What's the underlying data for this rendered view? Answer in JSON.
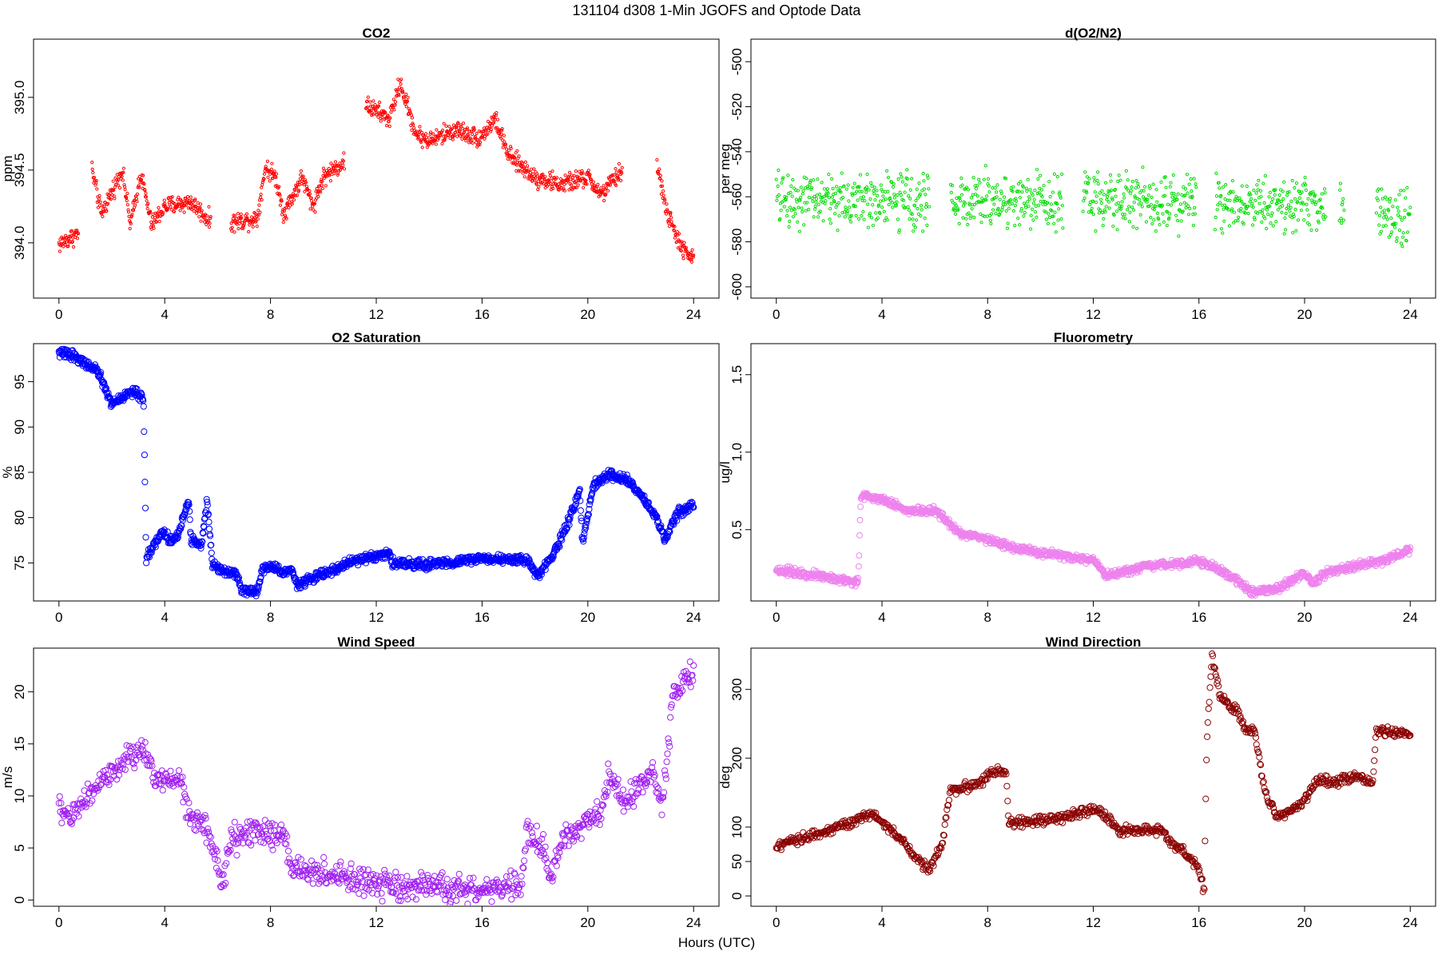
{
  "figure": {
    "title": "131104   d308   1-Min  JGOFS and Optode Data",
    "xlabel": "Hours (UTC)"
  },
  "chart_data": [
    {
      "type": "scatter",
      "id": "co2",
      "title": "CO2",
      "ylabel": "ppm",
      "xlim": [
        -0.96,
        24.96
      ],
      "ylim": [
        393.62,
        395.4
      ],
      "xticks": [
        0,
        4,
        8,
        12,
        16,
        20,
        24
      ],
      "yticks": [
        394.0,
        394.5,
        395.0
      ],
      "ytick_labels": [
        "394.0",
        "394.5",
        "395.0"
      ],
      "color": "#ff0000",
      "marker_r": 1.6,
      "n": 1440,
      "gaps": [
        [
          0.75,
          1.25
        ],
        [
          5.75,
          6.5
        ],
        [
          10.8,
          11.6
        ],
        [
          21.3,
          22.6
        ]
      ],
      "noise": 0.045,
      "profile": [
        [
          0,
          393.99
        ],
        [
          0.7,
          394.06
        ],
        [
          1.25,
          394.5
        ],
        [
          1.6,
          394.2
        ],
        [
          2.0,
          394.35
        ],
        [
          2.4,
          394.5
        ],
        [
          2.7,
          394.12
        ],
        [
          3.1,
          394.48
        ],
        [
          3.5,
          394.12
        ],
        [
          4.0,
          394.25
        ],
        [
          5.0,
          394.28
        ],
        [
          5.7,
          394.15
        ],
        [
          6.5,
          394.14
        ],
        [
          7.5,
          394.17
        ],
        [
          7.8,
          394.52
        ],
        [
          8.2,
          394.45
        ],
        [
          8.5,
          394.2
        ],
        [
          9.2,
          394.45
        ],
        [
          9.6,
          394.25
        ],
        [
          10.0,
          394.45
        ],
        [
          10.8,
          394.56
        ],
        [
          11.6,
          394.95
        ],
        [
          12.5,
          394.85
        ],
        [
          12.9,
          395.1
        ],
        [
          13.5,
          394.75
        ],
        [
          14.0,
          394.7
        ],
        [
          15.0,
          394.78
        ],
        [
          15.9,
          394.72
        ],
        [
          16.5,
          394.85
        ],
        [
          17.0,
          394.6
        ],
        [
          18.0,
          394.45
        ],
        [
          19.0,
          394.4
        ],
        [
          20.0,
          394.45
        ],
        [
          20.5,
          394.33
        ],
        [
          21.3,
          394.5
        ],
        [
          22.6,
          394.55
        ],
        [
          23.0,
          394.2
        ],
        [
          23.6,
          393.95
        ],
        [
          24.0,
          393.88
        ]
      ]
    },
    {
      "type": "scatter",
      "id": "o2n2",
      "title": "d(O2/N2)",
      "ylabel": "per meg",
      "xlim": [
        -0.96,
        24.96
      ],
      "ylim": [
        -605,
        -490
      ],
      "xticks": [
        0,
        4,
        8,
        12,
        16,
        20,
        24
      ],
      "yticks": [
        -600,
        -580,
        -560,
        -540,
        -520,
        -500
      ],
      "ytick_labels": [
        "-600",
        "-580",
        "-560",
        "-540",
        "-520",
        "-500"
      ],
      "color": "#00dd00",
      "marker_r": 1.6,
      "n": 1200,
      "gaps": [
        [
          5.8,
          6.6
        ],
        [
          10.85,
          11.6
        ],
        [
          15.9,
          16.6
        ],
        [
          20.8,
          21.3
        ],
        [
          21.5,
          22.7
        ]
      ],
      "noise": 8.5,
      "profile": [
        [
          0,
          -561
        ],
        [
          6,
          -562
        ],
        [
          12,
          -561
        ],
        [
          16,
          -562
        ],
        [
          20,
          -563
        ],
        [
          24,
          -570
        ]
      ]
    },
    {
      "type": "scatter",
      "id": "o2sat",
      "title": "O2 Saturation",
      "ylabel": "%",
      "xlim": [
        -0.96,
        24.96
      ],
      "ylim": [
        70.8,
        99.2
      ],
      "xticks": [
        0,
        4,
        8,
        12,
        16,
        20,
        24
      ],
      "yticks": [
        75,
        80,
        85,
        90,
        95
      ],
      "ytick_labels": [
        "75",
        "80",
        "85",
        "90",
        "95"
      ],
      "color": "#0000ff",
      "marker_r": 3.6,
      "n": 1440,
      "gaps": [],
      "noise": 0.35,
      "profile": [
        [
          0,
          98.2
        ],
        [
          0.5,
          98.0
        ],
        [
          1.5,
          96.0
        ],
        [
          2.0,
          92.5
        ],
        [
          2.5,
          93.5
        ],
        [
          2.8,
          94.0
        ],
        [
          3.2,
          93.0
        ],
        [
          3.3,
          75.5
        ],
        [
          3.9,
          78.5
        ],
        [
          4.2,
          77.5
        ],
        [
          4.5,
          78.0
        ],
        [
          4.9,
          82.0
        ],
        [
          5.0,
          77.5
        ],
        [
          5.4,
          77.0
        ],
        [
          5.6,
          82.0
        ],
        [
          5.8,
          75.0
        ],
        [
          6.3,
          74.0
        ],
        [
          6.7,
          74.0
        ],
        [
          6.9,
          72.0
        ],
        [
          7.5,
          71.8
        ],
        [
          7.7,
          74.5
        ],
        [
          8.2,
          74.5
        ],
        [
          8.5,
          73.8
        ],
        [
          8.8,
          74.5
        ],
        [
          9.0,
          72.6
        ],
        [
          10.0,
          73.8
        ],
        [
          11.0,
          75.0
        ],
        [
          11.5,
          75.5
        ],
        [
          12.5,
          76.0
        ],
        [
          12.6,
          75.0
        ],
        [
          14.0,
          74.8
        ],
        [
          16.0,
          75.5
        ],
        [
          17.8,
          75.2
        ],
        [
          18.1,
          73.5
        ],
        [
          18.8,
          76.5
        ],
        [
          19.4,
          80.5
        ],
        [
          19.7,
          83.0
        ],
        [
          19.8,
          77.0
        ],
        [
          20.2,
          83.5
        ],
        [
          20.8,
          84.8
        ],
        [
          21.5,
          84.0
        ],
        [
          22.0,
          82.5
        ],
        [
          22.6,
          80.0
        ],
        [
          22.9,
          77.5
        ],
        [
          23.4,
          80.5
        ],
        [
          24.0,
          81.3
        ]
      ]
    },
    {
      "type": "scatter",
      "id": "fluor",
      "title": "Fluorometry",
      "ylabel": "ug/l",
      "xlim": [
        -0.96,
        24.96
      ],
      "ylim": [
        0.04,
        1.7
      ],
      "xticks": [
        0,
        4,
        8,
        12,
        16,
        20,
        24
      ],
      "yticks": [
        0.5,
        1.0,
        1.5
      ],
      "ytick_labels": [
        "0.5",
        "1.0",
        "1.5"
      ],
      "color": "#ee82ee",
      "marker_r": 3.4,
      "n": 1440,
      "gaps": [],
      "noise": 0.018,
      "profile": [
        [
          0,
          0.24
        ],
        [
          1.0,
          0.22
        ],
        [
          2.0,
          0.19
        ],
        [
          3.1,
          0.16
        ],
        [
          3.2,
          0.72
        ],
        [
          4.0,
          0.7
        ],
        [
          5.0,
          0.62
        ],
        [
          6.0,
          0.62
        ],
        [
          6.5,
          0.55
        ],
        [
          7.0,
          0.47
        ],
        [
          8.0,
          0.44
        ],
        [
          9.0,
          0.38
        ],
        [
          10.0,
          0.35
        ],
        [
          12.0,
          0.3
        ],
        [
          12.5,
          0.2
        ],
        [
          14.0,
          0.26
        ],
        [
          16.0,
          0.3
        ],
        [
          17.0,
          0.22
        ],
        [
          18.0,
          0.1
        ],
        [
          19.0,
          0.12
        ],
        [
          20.0,
          0.22
        ],
        [
          20.3,
          0.15
        ],
        [
          20.8,
          0.22
        ],
        [
          22.0,
          0.27
        ],
        [
          23.0,
          0.3
        ],
        [
          24.0,
          0.37
        ]
      ]
    },
    {
      "type": "scatter",
      "id": "wspd",
      "title": "Wind Speed",
      "ylabel": "m/s",
      "xlim": [
        -0.96,
        24.96
      ],
      "ylim": [
        -0.6,
        24.2
      ],
      "xticks": [
        0,
        4,
        8,
        12,
        16,
        20,
        24
      ],
      "yticks": [
        0,
        5,
        10,
        15,
        20
      ],
      "ytick_labels": [
        "0",
        "5",
        "10",
        "15",
        "20"
      ],
      "color": "#a020f0",
      "marker_r": 3.6,
      "n": 900,
      "gaps": [],
      "noise": 0.9,
      "profile": [
        [
          0,
          8.8
        ],
        [
          0.4,
          8.0
        ],
        [
          1.0,
          9.5
        ],
        [
          1.5,
          11.5
        ],
        [
          2.0,
          12.0
        ],
        [
          2.8,
          14.0
        ],
        [
          3.2,
          14.5
        ],
        [
          3.6,
          11.5
        ],
        [
          4.5,
          12.0
        ],
        [
          5.0,
          8.0
        ],
        [
          5.5,
          7.0
        ],
        [
          6.0,
          3.5
        ],
        [
          6.2,
          1.5
        ],
        [
          6.5,
          5.8
        ],
        [
          7.5,
          6.5
        ],
        [
          8.5,
          6.0
        ],
        [
          8.8,
          3.2
        ],
        [
          10.0,
          2.5
        ],
        [
          11.0,
          2.0
        ],
        [
          12.0,
          1.5
        ],
        [
          12.5,
          1.2
        ],
        [
          14.0,
          1.2
        ],
        [
          16.0,
          0.9
        ],
        [
          17.5,
          1.5
        ],
        [
          17.7,
          6.5
        ],
        [
          18.3,
          5.0
        ],
        [
          18.6,
          2.0
        ],
        [
          19.0,
          5.5
        ],
        [
          19.5,
          6.5
        ],
        [
          20.0,
          8.0
        ],
        [
          20.5,
          8.5
        ],
        [
          20.8,
          12.0
        ],
        [
          21.5,
          9.5
        ],
        [
          22.0,
          11.5
        ],
        [
          22.5,
          12.0
        ],
        [
          22.8,
          9.0
        ],
        [
          23.2,
          19.0
        ],
        [
          23.6,
          21.0
        ],
        [
          24.0,
          22.0
        ]
      ]
    },
    {
      "type": "scatter",
      "id": "wdir",
      "title": "Wind Direction",
      "ylabel": "deg",
      "xlim": [
        -0.96,
        24.96
      ],
      "ylim": [
        -15,
        360
      ],
      "xticks": [
        0,
        4,
        8,
        12,
        16,
        20,
        24
      ],
      "yticks": [
        0,
        50,
        100,
        200,
        300
      ],
      "ytick_labels": [
        "0",
        "50",
        "100",
        "200",
        "300"
      ],
      "color": "#8b0000",
      "marker_r": 3.6,
      "n": 900,
      "gaps": [],
      "noise": 5,
      "profile": [
        [
          0,
          70
        ],
        [
          1.0,
          85
        ],
        [
          2.0,
          95
        ],
        [
          3.0,
          110
        ],
        [
          3.6,
          120
        ],
        [
          4.0,
          108
        ],
        [
          5.0,
          70
        ],
        [
          5.5,
          45
        ],
        [
          5.8,
          40
        ],
        [
          6.3,
          80
        ],
        [
          6.6,
          155
        ],
        [
          7.5,
          160
        ],
        [
          8.2,
          180
        ],
        [
          8.7,
          180
        ],
        [
          8.8,
          105
        ],
        [
          10.0,
          110
        ],
        [
          11.0,
          115
        ],
        [
          12.0,
          125
        ],
        [
          12.5,
          115
        ],
        [
          13.0,
          95
        ],
        [
          14.5,
          95
        ],
        [
          15.5,
          60
        ],
        [
          16.0,
          40
        ],
        [
          16.2,
          5
        ],
        [
          16.3,
          230
        ],
        [
          16.5,
          350
        ],
        [
          16.8,
          290
        ],
        [
          17.4,
          270
        ],
        [
          17.8,
          240
        ],
        [
          18.1,
          240
        ],
        [
          18.5,
          150
        ],
        [
          19.0,
          115
        ],
        [
          19.5,
          125
        ],
        [
          20.0,
          140
        ],
        [
          20.5,
          170
        ],
        [
          21.0,
          165
        ],
        [
          22.0,
          175
        ],
        [
          22.6,
          165
        ],
        [
          22.7,
          240
        ],
        [
          24.0,
          235
        ]
      ]
    }
  ]
}
